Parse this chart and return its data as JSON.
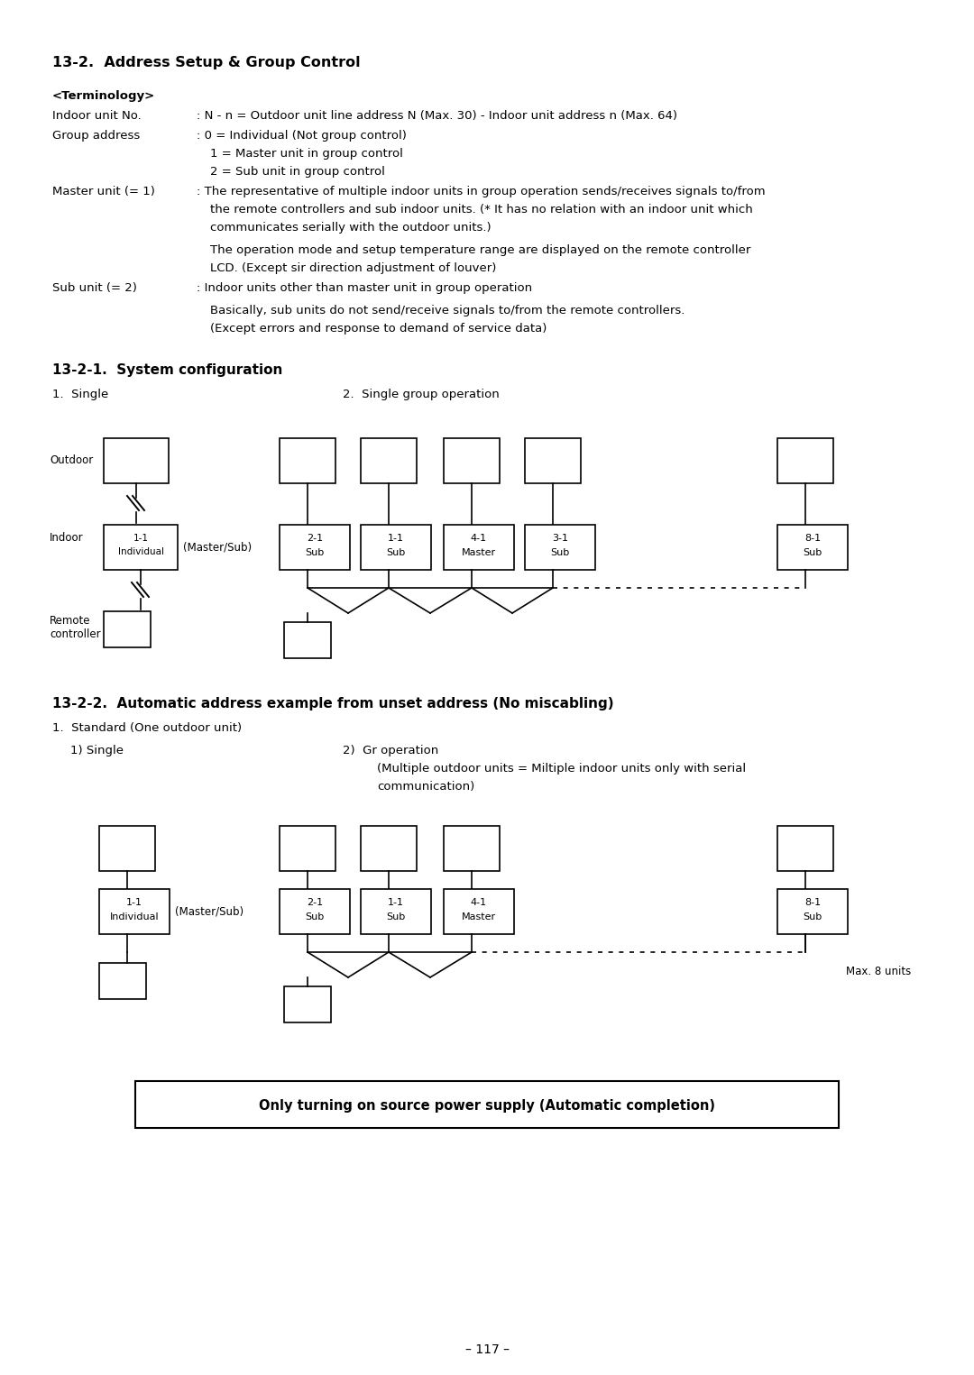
{
  "title_main": "13-2.  Address Setup & Group Control",
  "terminology_header": "<Terminology>",
  "section2_title": "13-2-1.  System configuration",
  "single_label": "1.  Single",
  "group_label": "2.  Single group operation",
  "section3_title": "13-2-2.  Automatic address example from unset address (No miscabling)",
  "std_label": "1.  Standard (One outdoor unit)",
  "single2_label": "1) Single",
  "gr_label_line1": "2)  Gr operation",
  "gr_label_line2": "    (Multiple outdoor units = Miltiple indoor units only with serial",
  "gr_label_line3": "    communication)",
  "bottom_box_text": "Only turning on source power supply (Automatic completion)",
  "page_number": "– 117 –",
  "bg_color": "#ffffff",
  "text_color": "#000000"
}
